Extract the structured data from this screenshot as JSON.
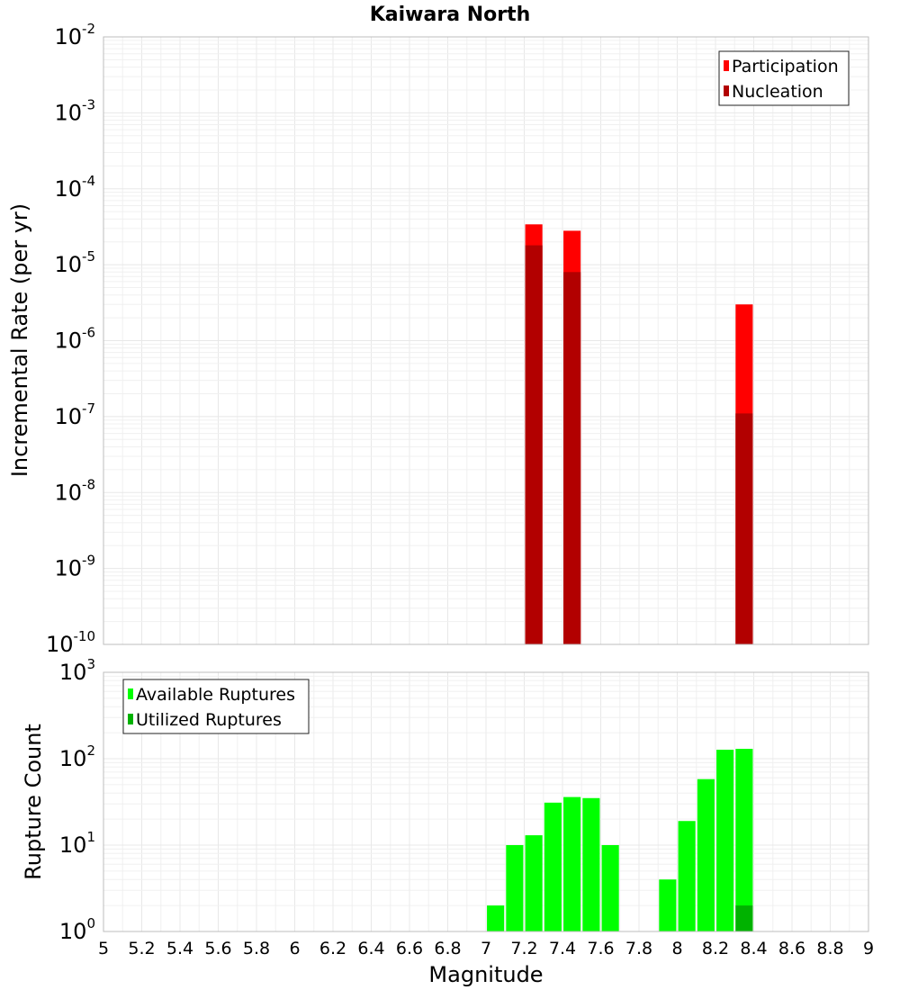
{
  "chart_data": [
    {
      "type": "bar",
      "title": "Kaiwara North",
      "xlabel": "",
      "ylabel": "Incremental Rate (per yr)",
      "yscale": "log",
      "ylim_exp": [
        -10,
        -2
      ],
      "xlim": [
        5,
        9
      ],
      "legend_position": "top-right",
      "series": [
        {
          "name": "Participation",
          "color": "#ff0000",
          "points": [
            {
              "x": 7.25,
              "y": 3.4e-05
            },
            {
              "x": 7.45,
              "y": 2.8e-05
            },
            {
              "x": 8.35,
              "y": 3e-06
            }
          ]
        },
        {
          "name": "Nucleation",
          "color": "#b20000",
          "points": [
            {
              "x": 7.25,
              "y": 1.8e-05
            },
            {
              "x": 7.45,
              "y": 8e-06
            },
            {
              "x": 8.35,
              "y": 1.1e-07
            }
          ]
        }
      ]
    },
    {
      "type": "bar",
      "title": "",
      "xlabel": "Magnitude",
      "ylabel": "Rupture Count",
      "yscale": "log",
      "ylim_exp": [
        0,
        3
      ],
      "xlim": [
        5,
        9
      ],
      "legend_position": "top-left",
      "xticks": [
        "5",
        "5.2",
        "5.4",
        "5.6",
        "5.8",
        "6",
        "6.2",
        "6.4",
        "6.6",
        "6.8",
        "7",
        "7.2",
        "7.4",
        "7.6",
        "7.8",
        "8",
        "8.2",
        "8.4",
        "8.6",
        "8.8",
        "9"
      ],
      "series": [
        {
          "name": "Available Ruptures",
          "color": "#00ff00",
          "points": [
            {
              "x": 6.95,
              "y": 1
            },
            {
              "x": 7.05,
              "y": 2
            },
            {
              "x": 7.15,
              "y": 10
            },
            {
              "x": 7.25,
              "y": 13
            },
            {
              "x": 7.35,
              "y": 31
            },
            {
              "x": 7.45,
              "y": 36
            },
            {
              "x": 7.55,
              "y": 35
            },
            {
              "x": 7.65,
              "y": 10
            },
            {
              "x": 7.95,
              "y": 4
            },
            {
              "x": 8.05,
              "y": 19
            },
            {
              "x": 8.15,
              "y": 58
            },
            {
              "x": 8.25,
              "y": 127
            },
            {
              "x": 8.35,
              "y": 130
            }
          ]
        },
        {
          "name": "Utilized Ruptures",
          "color": "#00b200",
          "points": [
            {
              "x": 7.25,
              "y": 1
            },
            {
              "x": 7.45,
              "y": 1
            },
            {
              "x": 8.35,
              "y": 2
            }
          ]
        }
      ]
    }
  ]
}
